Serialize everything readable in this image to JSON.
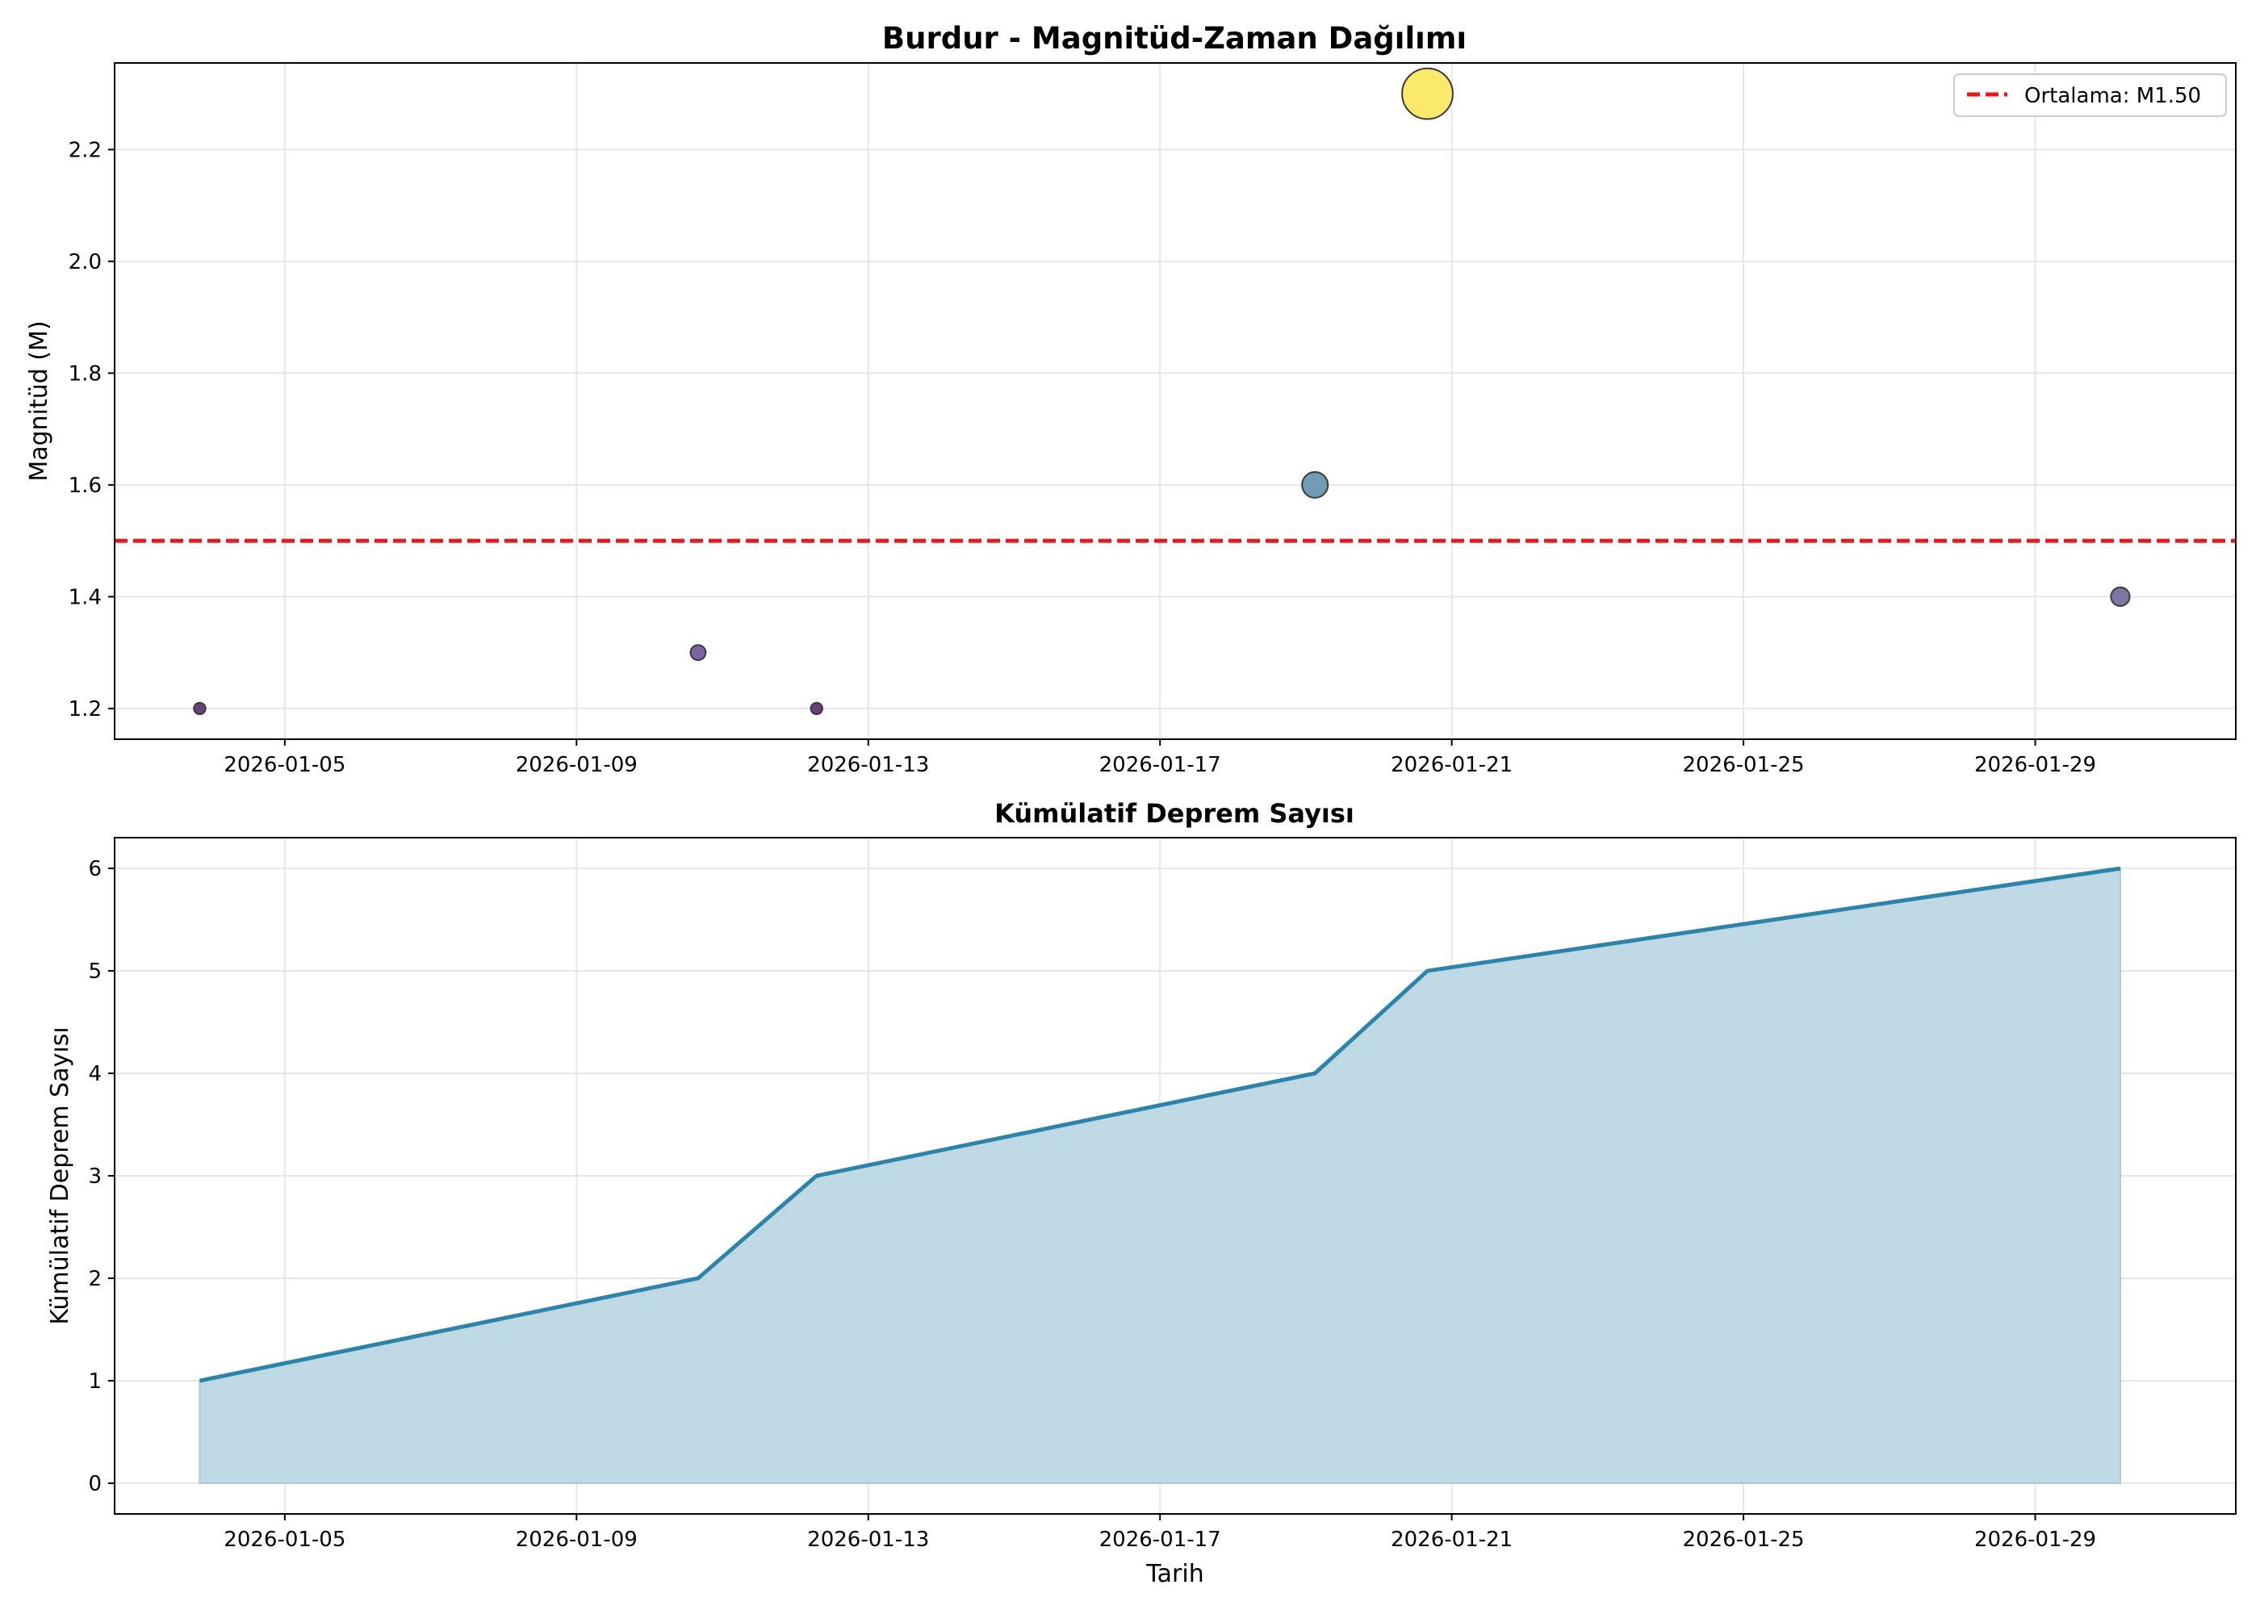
{
  "chart_data": [
    {
      "type": "scatter",
      "title": "Burdur - Magnitüd-Zaman Dağılımı",
      "xlabel": "",
      "ylabel": "Magnitüd (M)",
      "x_tick_labels": [
        "2026-01-05",
        "2026-01-09",
        "2026-01-13",
        "2026-01-17",
        "2026-01-21",
        "2026-01-25",
        "2026-01-29"
      ],
      "y_ticks": [
        1.2,
        1.4,
        1.6,
        1.8,
        2.0,
        2.2
      ],
      "y_tick_labels": [
        "1.2",
        "1.4",
        "1.6",
        "1.8",
        "2.0",
        "2.2"
      ],
      "xlim": [
        "2026-01-02T16:00",
        "2026-01-31T18:00"
      ],
      "ylim": [
        1.145,
        2.355
      ],
      "grid": true,
      "legend_position": "top-right",
      "points": [
        {
          "x": "2026-01-03T20:00",
          "y": 1.2,
          "color": "#6b3f78"
        },
        {
          "x": "2026-01-10T16:00",
          "y": 1.3,
          "color": "#7d62a0"
        },
        {
          "x": "2026-01-12T07:00",
          "y": 1.2,
          "color": "#6b3f78"
        },
        {
          "x": "2026-01-19T03:00",
          "y": 1.6,
          "color": "#6f9bb5"
        },
        {
          "x": "2026-01-20T16:00",
          "y": 2.3,
          "color": "#fbe96b"
        },
        {
          "x": "2026-01-30T04:00",
          "y": 1.4,
          "color": "#7b76a4"
        }
      ],
      "reference_line": {
        "label": "Ortalama: M1.50",
        "value": 1.5,
        "color": "#e31a1c",
        "style": "dashed"
      }
    },
    {
      "type": "area",
      "title": "Kümülatif Deprem Sayısı",
      "xlabel": "Tarih",
      "ylabel": "Kümülatif Deprem Sayısı",
      "x_tick_labels": [
        "2026-01-05",
        "2026-01-09",
        "2026-01-13",
        "2026-01-17",
        "2026-01-21",
        "2026-01-25",
        "2026-01-29"
      ],
      "y_ticks": [
        0,
        1,
        2,
        3,
        4,
        5,
        6
      ],
      "y_tick_labels": [
        "0",
        "1",
        "2",
        "3",
        "4",
        "5",
        "6"
      ],
      "xlim": [
        "2026-01-02T16:00",
        "2026-01-31T18:00"
      ],
      "ylim": [
        -0.3,
        6.3
      ],
      "grid": true,
      "x": [
        "2026-01-03T20:00",
        "2026-01-10T16:00",
        "2026-01-12T07:00",
        "2026-01-19T03:00",
        "2026-01-20T16:00",
        "2026-01-30T04:00"
      ],
      "values": [
        1,
        2,
        3,
        4,
        5,
        6
      ],
      "line_color": "#2e83a8",
      "fill_color": "#bfd9e4"
    }
  ]
}
